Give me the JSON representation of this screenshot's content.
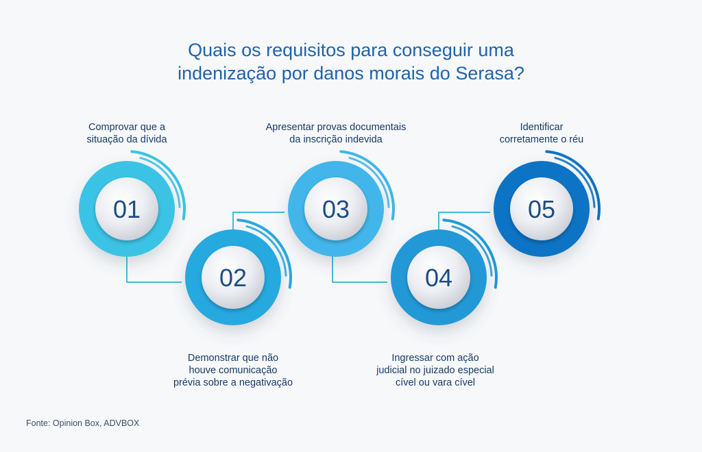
{
  "title": {
    "line1": "Quais os requisitos para conseguir uma",
    "line2": "indenização por danos morais do Serasa?"
  },
  "steps": [
    {
      "number": "01",
      "lines": [
        "Comprovar que a",
        "situação da dívida"
      ],
      "color": "#3ac3e6"
    },
    {
      "number": "02",
      "lines": [
        "Demonstrar que não",
        "houve comunicação",
        "prévia sobre a negativação"
      ],
      "color": "#26a9df"
    },
    {
      "number": "03",
      "lines": [
        "Apresentar provas documentais",
        "da inscrição indevida"
      ],
      "color": "#42b6ea"
    },
    {
      "number": "04",
      "lines": [
        "Ingressar com ação",
        "judicial no juizado especial",
        "cível ou vara cível"
      ],
      "color": "#2299d6"
    },
    {
      "number": "05",
      "lines": [
        "Identificar",
        "corretamente o réu"
      ],
      "color": "#0d73c4"
    }
  ],
  "source": "Fonte: Opinion Box, ADVBOX",
  "colors": {
    "title": "#1d63ad",
    "text": "#173a66",
    "connector": "#3fbfd4",
    "background": "#f7f8fa"
  }
}
